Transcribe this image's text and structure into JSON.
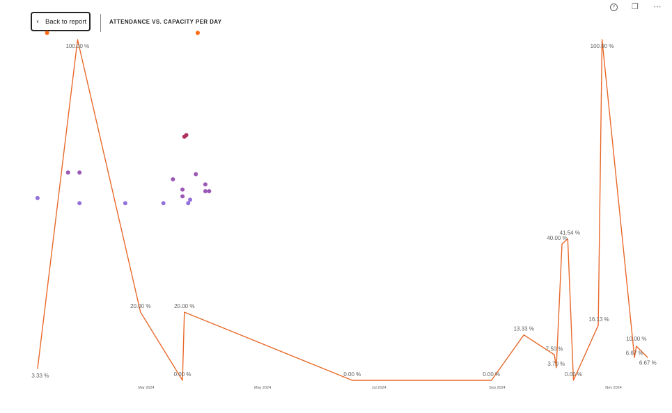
{
  "header": {
    "back_label": "Back to report",
    "title": "ATTENDANCE VS. CAPACITY PER DAY"
  },
  "toolbar": {
    "icons": [
      "help-icon",
      "copy-icon",
      "more-options-icon"
    ],
    "help_glyph": "?",
    "copy_glyph": "❐",
    "more_glyph": "⋯"
  },
  "chart_data": {
    "type": "line",
    "title": "ATTENDANCE VS. CAPACITY PER DAY",
    "x_ticks": [
      {
        "label": "Mar 2024",
        "date": "2024-03-01"
      },
      {
        "label": "May 2024",
        "date": "2024-05-01"
      },
      {
        "label": "Jul 2024",
        "date": "2024-07-01"
      },
      {
        "label": "Sep 2024",
        "date": "2024-09-01"
      },
      {
        "label": "Nov 2024",
        "date": "2024-11-01"
      }
    ],
    "ylim": [
      0,
      100
    ],
    "grid": false,
    "line_color": "#e8692a",
    "series": [
      {
        "values": [
          {
            "date": "2024-01-04",
            "y": 3.33,
            "label": "3.33 %"
          },
          {
            "date": "2024-01-25",
            "y": 100,
            "label": "100.00 %"
          },
          {
            "date": "2024-02-27",
            "y": 20,
            "label": "20.00 %"
          },
          {
            "date": "2024-03-20",
            "y": 0,
            "label": "0.00 %"
          },
          {
            "date": "2024-03-21",
            "y": 20,
            "label": "20.00 %"
          },
          {
            "date": "2024-06-17",
            "y": 0,
            "label": "0.00 %"
          },
          {
            "date": "2024-08-29",
            "y": 0,
            "label": "0.00 %"
          },
          {
            "date": "2024-09-15",
            "y": 13.33,
            "label": "13.33 %"
          },
          {
            "date": "2024-10-01",
            "y": 7.5,
            "label": "7.50 %"
          },
          {
            "date": "2024-10-02",
            "y": 3.7,
            "label": "3.70 %"
          },
          {
            "date": "2024-10-05",
            "y": 40,
            "label": "40.00 %"
          },
          {
            "date": "2024-10-08",
            "y": 41.54,
            "label": "41.54 %"
          },
          {
            "date": "2024-10-11",
            "y": 0,
            "label": "0.00 %"
          },
          {
            "date": "2024-10-24",
            "y": 16.13,
            "label": "16.13 %"
          },
          {
            "date": "2024-10-26",
            "y": 100,
            "label": "100.00 %"
          },
          {
            "date": "2024-11-12",
            "y": 6.67,
            "label": "6.67 %"
          },
          {
            "date": "2024-11-13",
            "y": 10,
            "label": "10.00 %"
          },
          {
            "date": "2024-11-19",
            "y": 6.67,
            "label": "6.67 %"
          }
        ]
      }
    ],
    "scatter_points": [
      {
        "date": "2024-01-04",
        "y": 53.5,
        "color": "#9370db"
      },
      {
        "date": "2024-01-20",
        "y": 61,
        "color": "#9b59b6"
      },
      {
        "date": "2024-01-26",
        "y": 61,
        "color": "#9b59b6"
      },
      {
        "date": "2024-01-26",
        "y": 52,
        "color": "#9370db"
      },
      {
        "date": "2024-02-19",
        "y": 52,
        "color": "#9370db"
      },
      {
        "date": "2024-03-10",
        "y": 52,
        "color": "#9370db"
      },
      {
        "date": "2024-03-15",
        "y": 59,
        "color": "#9b59b6"
      },
      {
        "date": "2024-03-20",
        "y": 56,
        "color": "#9b59b6"
      },
      {
        "date": "2024-03-20",
        "y": 54,
        "color": "#9b59b6"
      },
      {
        "date": "2024-03-21",
        "y": 71.5,
        "color": "#b03060"
      },
      {
        "date": "2024-03-22",
        "y": 72,
        "color": "#b03060"
      },
      {
        "date": "2024-03-23",
        "y": 52,
        "color": "#9370db"
      },
      {
        "date": "2024-03-24",
        "y": 53,
        "color": "#9370db"
      },
      {
        "date": "2024-03-27",
        "y": 60.5,
        "color": "#9b59b6"
      },
      {
        "date": "2024-04-01",
        "y": 57.5,
        "color": "#9b59b6"
      },
      {
        "date": "2024-04-01",
        "y": 55.5,
        "color": "#9b59b6"
      },
      {
        "date": "2024-04-03",
        "y": 55.5,
        "color": "#9b59b6"
      },
      {
        "date": "2024-01-09",
        "y": 102,
        "color": "#ff6a13"
      },
      {
        "date": "2024-03-28",
        "y": 102,
        "color": "#ff6a13"
      }
    ]
  }
}
